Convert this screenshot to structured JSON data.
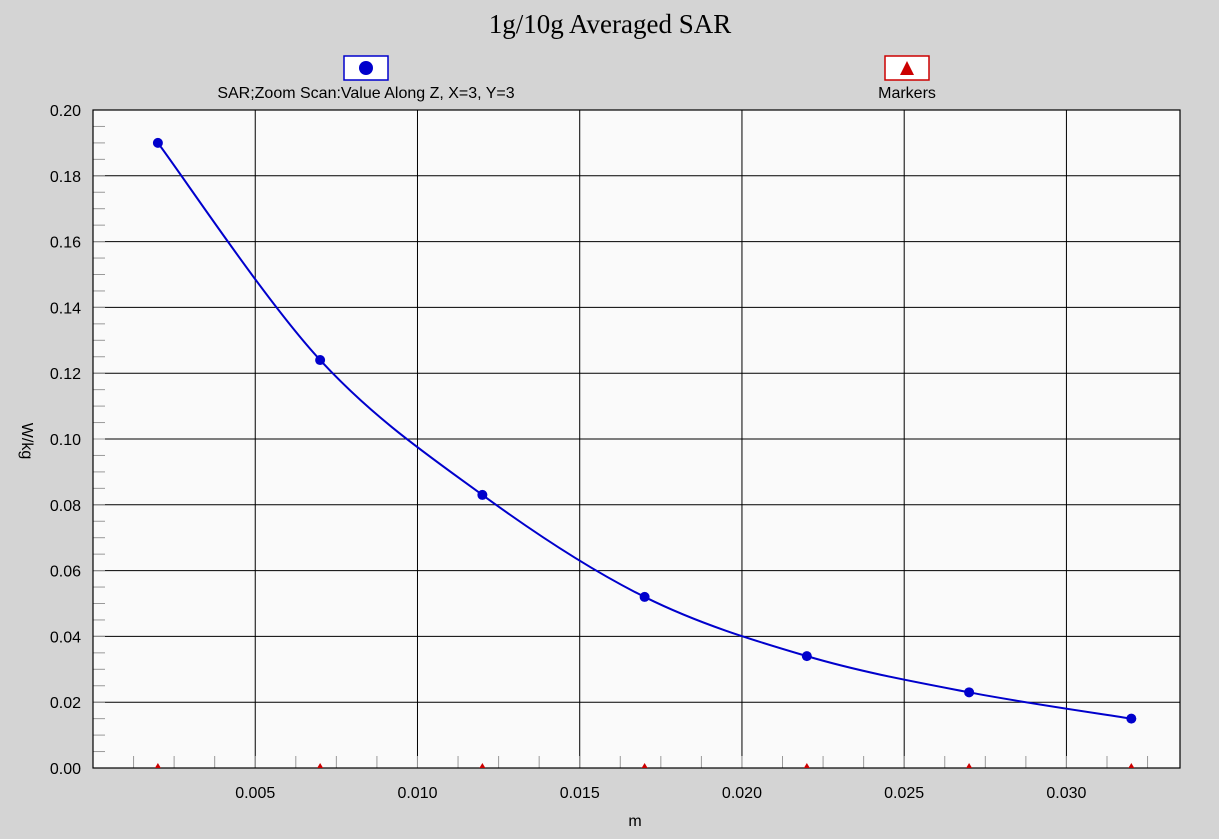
{
  "chart_data": {
    "type": "line",
    "title": "1g/10g Averaged SAR",
    "xlabel": "m",
    "ylabel": "W/kg",
    "xlim": [
      0.0,
      0.0335
    ],
    "ylim": [
      0.0,
      0.2
    ],
    "x_ticks": [
      0.005,
      0.01,
      0.015,
      0.02,
      0.025,
      0.03
    ],
    "x_tick_labels": [
      "0.005",
      "0.010",
      "0.015",
      "0.020",
      "0.025",
      "0.030"
    ],
    "y_ticks": [
      0.0,
      0.02,
      0.04,
      0.06,
      0.08,
      0.1,
      0.12,
      0.14,
      0.16,
      0.18,
      0.2
    ],
    "y_tick_labels": [
      "0.00",
      "0.02",
      "0.04",
      "0.06",
      "0.08",
      "0.10",
      "0.12",
      "0.14",
      "0.16",
      "0.18",
      "0.20"
    ],
    "grid": true,
    "legend_placement": "top",
    "series": [
      {
        "name": "SAR;Zoom Scan:Value Along Z, X=3, Y=3",
        "color": "#0000cc",
        "marker": "circle",
        "x": [
          0.002,
          0.007,
          0.012,
          0.017,
          0.022,
          0.027,
          0.032
        ],
        "y": [
          0.19,
          0.124,
          0.083,
          0.052,
          0.034,
          0.023,
          0.015
        ]
      },
      {
        "name": "Markers",
        "color": "#cc0000",
        "marker": "triangle",
        "x": [
          0.002,
          0.007,
          0.012,
          0.017,
          0.022,
          0.027,
          0.032
        ],
        "y": [
          0.0,
          0.0,
          0.0,
          0.0,
          0.0,
          0.0,
          0.0
        ]
      }
    ]
  }
}
